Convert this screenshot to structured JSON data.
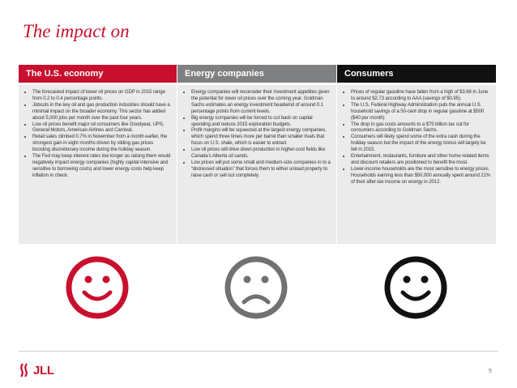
{
  "slide": {
    "title": "The impact on",
    "page_number": "5",
    "logo_text": "JLL",
    "accent_color": "#c8102e"
  },
  "columns": [
    {
      "header": "The U.S. economy",
      "header_color": "#c8102e",
      "face_icon": "smiley-face-icon",
      "face_color": "#c8102e",
      "bullets": [
        "The forecasted impact of lower oil prices on GDP in 2015 range from 0.2 to 0.4 percentage points.",
        "Jobcuts in the key oil and gas production industries should have a minimal impact on the broader economy. This sector has added about 5,000 jobs per month over the past four years.",
        "Low oil prices benefit major oil consumers like Goodyear, UPS, General Motors, American Airlines and Carnival.",
        "Retail sales climbed 0.7% in November from a month earlier, the strongest gain in eight months driven by sliding gas prices boosting discretionary income during the holiday season.",
        "The Fed may keep interest rates low longer as raising them would negatively impact energy companies (highly capital intensive and sensitive to borrowing costs) and lower energy costs help keep inflation in check."
      ]
    },
    {
      "header": "Energy companies",
      "header_color": "#7e8081",
      "face_icon": "frowning-face-icon",
      "face_color": "#6f7173",
      "bullets": [
        "Energy companies will reconsider their investment appetites given the potential for lower oil prices over the coming year. Goldman Sachs estimates an energy investment headwind of around 0.1 percentage points from current levels.",
        "Big energy companies will be forced to cut back on capital spending and reduce 2015 exploration budgets.",
        "Profit margins will be squeezed at the largest energy companies, which spend three times more per barrel than smaller rivals that focus on U.S. shale, which is easier to extract",
        "Low oil prices will drive down production in higher-cost fields like Canada’s Alberta oil sands.",
        "Low prices will put some small and medium-size companies in to a “distressed situation” that forces them to either unload property to raise cash or sell out completely."
      ]
    },
    {
      "header": "Consumers",
      "header_color": "#111111",
      "face_icon": "smiley-face-icon",
      "face_color": "#111111",
      "bullets": [
        "Prices of regular gasoline have fallen from a high of $3.68 in June to around $2.73 according to AAA (savings of $0.95).",
        "The U.S. Federal Highway Administration puts the annual U.S. household savings of a 50-cent drop in regular gasoline at $500 ($40 per month)",
        "The drop in gas costs amounts to a $75 billion tax cut for consumers according to Goldman Sachs.",
        "Consumers will likely spend some of the extra cash during the holiday season but the impact of the energy bonus will largely be felt in 2015.",
        "Entertainment, restaurants, furniture and other home related items and discount retailers are positioned to benefit the most.",
        "Lower-income households are the most sensitive to energy prices. Households earning less than $50,000 annually spent around 21% of their after-tax income on energy in 2012."
      ]
    }
  ]
}
